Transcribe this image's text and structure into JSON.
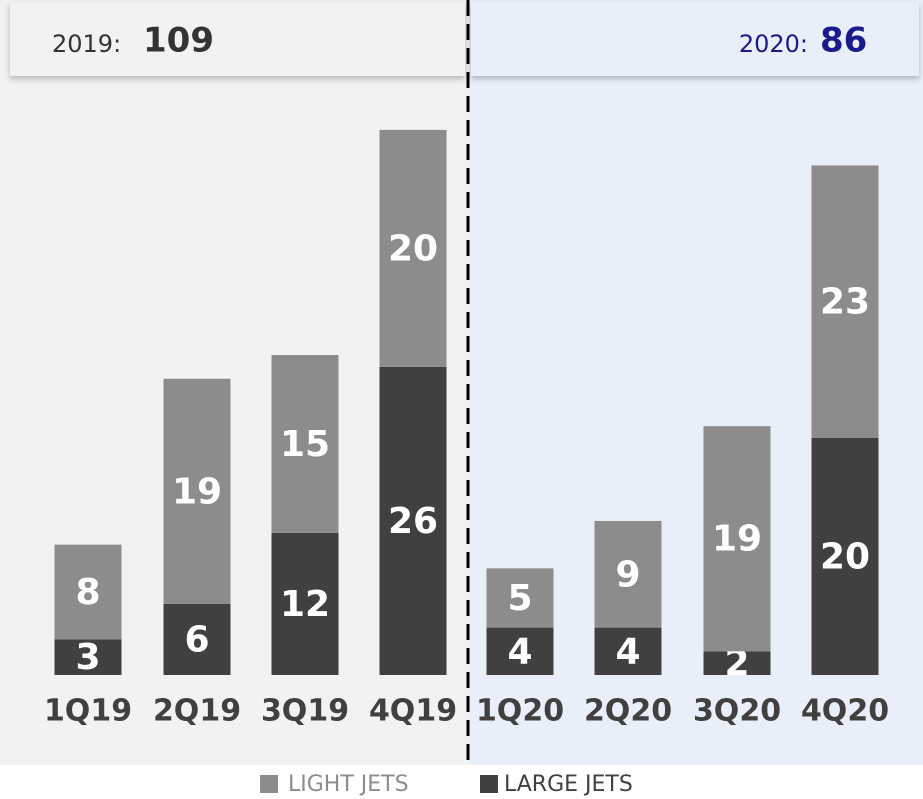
{
  "chart_data": {
    "type": "stacked_bar",
    "annotations": [
      {
        "label": "2019:",
        "value": 109
      },
      {
        "label": "2020:",
        "value": 86
      }
    ],
    "categories": [
      "1Q19",
      "2Q19",
      "3Q19",
      "4Q19",
      "1Q20",
      "2Q20",
      "3Q20",
      "4Q20"
    ],
    "series": [
      {
        "name": "LARGE JETS",
        "color": "#404040",
        "values": [
          3,
          6,
          12,
          26,
          4,
          4,
          2,
          20
        ]
      },
      {
        "name": "LIGHT JETS",
        "color": "#8c8c8c",
        "values": [
          8,
          19,
          15,
          20,
          5,
          9,
          19,
          23
        ]
      }
    ]
  }
}
